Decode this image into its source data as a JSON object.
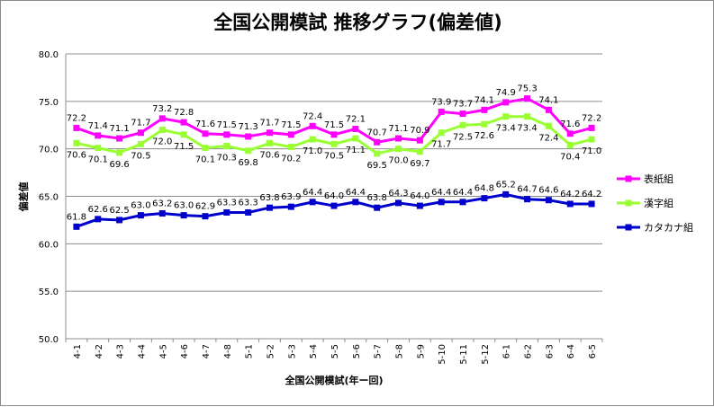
{
  "chart_data": {
    "type": "line",
    "title": "全国公開模試 推移グラフ(偏差値)",
    "xlabel": "全国公開模試(年ー回)",
    "ylabel": "偏差値",
    "ylim": [
      50,
      80
    ],
    "yticks": [
      "50.0",
      "55.0",
      "60.0",
      "65.0",
      "70.0",
      "75.0",
      "80.0"
    ],
    "grid": true,
    "legend_position": "right",
    "categories": [
      "4-1",
      "4-2",
      "4-3",
      "4-4",
      "4-5",
      "4-6",
      "4-7",
      "4-8",
      "5-1",
      "5-2",
      "5-3",
      "5-4",
      "5-5",
      "5-6",
      "5-7",
      "5-8",
      "5-9",
      "5-10",
      "5-11",
      "5-12",
      "6-1",
      "6-2",
      "6-3",
      "6-4",
      "6-5"
    ],
    "series": [
      {
        "name": "表紙組",
        "color": "#ff00ff",
        "label_position": "above",
        "values": [
          72.2,
          71.4,
          71.1,
          71.7,
          73.2,
          72.8,
          71.6,
          71.5,
          71.3,
          71.7,
          71.5,
          72.4,
          71.5,
          72.1,
          70.7,
          71.1,
          70.9,
          73.9,
          73.7,
          74.1,
          74.9,
          75.3,
          74.1,
          71.6,
          72.2
        ]
      },
      {
        "name": "漢字組",
        "color": "#99ff33",
        "label_position": "below",
        "values": [
          70.6,
          70.1,
          69.6,
          70.5,
          72.0,
          71.5,
          70.1,
          70.3,
          69.8,
          70.6,
          70.2,
          71.0,
          70.5,
          71.1,
          69.5,
          70.0,
          69.7,
          71.7,
          72.5,
          72.6,
          73.4,
          73.4,
          72.4,
          70.4,
          71.0
        ]
      },
      {
        "name": "カタカナ組",
        "color": "#0000cc",
        "label_position": "above",
        "values": [
          61.8,
          62.6,
          62.5,
          63.0,
          63.2,
          63.0,
          62.9,
          63.3,
          63.3,
          63.8,
          63.9,
          64.4,
          64.0,
          64.4,
          63.8,
          64.3,
          64.0,
          64.4,
          64.4,
          64.8,
          65.2,
          64.7,
          64.6,
          64.2,
          64.2
        ]
      }
    ]
  }
}
